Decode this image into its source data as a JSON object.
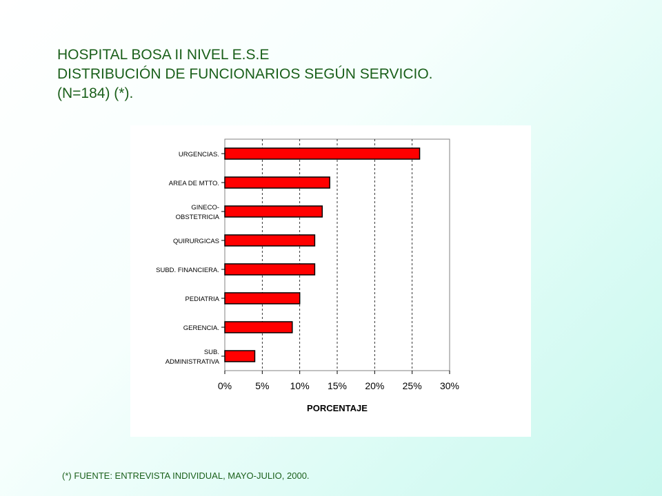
{
  "title": {
    "line1": "HOSPITAL BOSA II NIVEL E.S.E",
    "line2": "DISTRIBUCIÓN DE FUNCIONARIOS SEGÚN SERVICIO.",
    "line3": "(N=184) (*)."
  },
  "footnote": "(*) FUENTE: ENTREVISTA INDIVIDUAL, MAYO-JULIO, 2000.",
  "colors": {
    "bar": "#ff0000",
    "text": "#1a5f1a"
  },
  "chart_data": {
    "type": "bar",
    "orientation": "horizontal",
    "categories": [
      [
        "URGENCIAS."
      ],
      [
        "AREA DE MTTO."
      ],
      [
        "GINECO-",
        "OBSTETRICIA"
      ],
      [
        "QUIRURGICAS"
      ],
      [
        "SUBD. FINANCIERA."
      ],
      [
        "PEDIATRIA"
      ],
      [
        "GERENCIA."
      ],
      [
        "SUB.",
        "ADMINISTRATIVA"
      ]
    ],
    "values": [
      26,
      14,
      13,
      12,
      12,
      10,
      9,
      4
    ],
    "xlabel": "PORCENTAJE",
    "xlim": [
      0,
      30
    ],
    "xticks": [
      "0%",
      "5%",
      "10%",
      "15%",
      "20%",
      "25%",
      "30%"
    ],
    "grid": "vertical dashed"
  }
}
